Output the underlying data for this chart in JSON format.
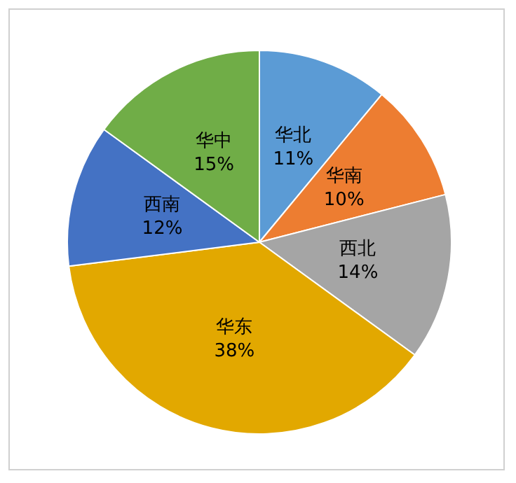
{
  "chart_data": {
    "type": "pie",
    "categories": [
      "华北",
      "华南",
      "西北",
      "华东",
      "西南",
      "华中"
    ],
    "values": [
      11,
      10,
      14,
      38,
      12,
      15
    ],
    "value_labels": [
      "11%",
      "10%",
      "14%",
      "38%",
      "12%",
      "15%"
    ],
    "colors": [
      "#5b9bd5",
      "#ed7d31",
      "#a5a5a5",
      "#e2a800",
      "#4472c4",
      "#70ad47"
    ],
    "legend": false
  }
}
